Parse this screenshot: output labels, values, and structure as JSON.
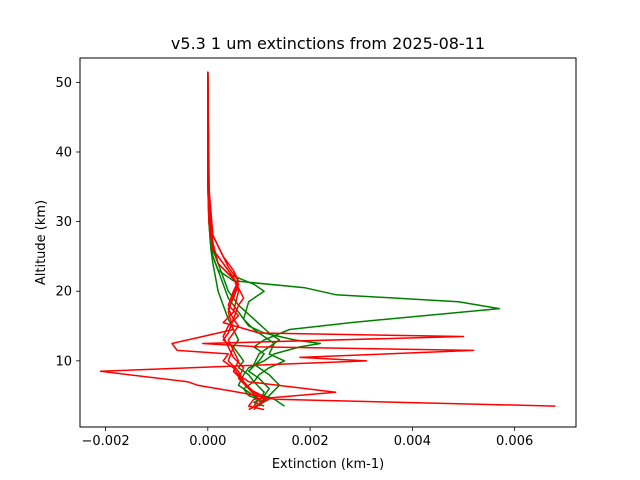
{
  "chart_data": {
    "type": "line",
    "title": "v5.3 1 um extinctions from 2025-08-11",
    "xlabel": "Extinction (km-1)",
    "ylabel": "Altitude (km)",
    "xlim": [
      -0.0025,
      0.0072
    ],
    "ylim": [
      0.5,
      53.5
    ],
    "x_ticks": [
      -0.002,
      0.0,
      0.002,
      0.004,
      0.006
    ],
    "x_tick_labels": [
      "−0.002",
      "0.000",
      "0.002",
      "0.004",
      "0.006"
    ],
    "y_ticks": [
      10,
      20,
      30,
      40,
      50
    ],
    "y_tick_labels": [
      "10",
      "20",
      "30",
      "40",
      "50"
    ],
    "grid": false,
    "colors": {
      "green": "#008000",
      "red": "#ff0000"
    },
    "series": [
      {
        "color": "green",
        "x": [
          0.0,
          0.0,
          0.0,
          2e-05,
          4e-05,
          6e-05,
          0.0001,
          0.00015,
          0.0002,
          0.0003,
          0.0004,
          0.0005,
          0.0006,
          0.0005,
          0.0006,
          0.0007,
          0.0006,
          0.0008,
          0.0009,
          0.0007,
          0.0008,
          0.001,
          0.0009,
          0.0011
        ],
        "y": [
          51.5,
          40,
          35,
          30,
          28,
          26,
          24,
          22,
          20,
          18,
          16,
          14.5,
          13,
          12,
          11,
          10,
          9,
          8,
          7,
          6,
          5,
          4.5,
          4,
          3.5
        ]
      },
      {
        "color": "green",
        "x": [
          0.0,
          0.0,
          2e-05,
          5e-05,
          0.0001,
          0.0002,
          0.0005,
          0.0019,
          0.0025,
          0.0049,
          0.0057,
          0.0028,
          0.0016,
          0.0011,
          0.0009,
          0.0011,
          0.001,
          0.0008,
          0.001,
          0.0012,
          0.0011,
          0.0013,
          0.0015
        ],
        "y": [
          51.5,
          36,
          30,
          27,
          25,
          23,
          21.5,
          20.5,
          19.5,
          18.5,
          17.5,
          15.5,
          14.5,
          13,
          12,
          11,
          10,
          8.5,
          7.5,
          6,
          5,
          4.5,
          3.5
        ]
      },
      {
        "color": "green",
        "x": [
          0.0,
          1e-05,
          4e-05,
          0.0001,
          0.0002,
          0.0004,
          0.0009,
          0.0011,
          0.0008,
          0.0007,
          0.0009,
          0.0011,
          0.0013,
          0.0012,
          0.0015,
          0.0012,
          0.001,
          0.0009,
          0.0011,
          0.001
        ],
        "y": [
          51.5,
          33,
          29,
          26,
          24,
          22.5,
          21,
          20,
          18.5,
          16,
          14.5,
          13.5,
          12.5,
          11,
          10,
          9,
          8,
          7,
          5.5,
          4
        ]
      },
      {
        "color": "green",
        "x": [
          0.0,
          2e-05,
          5e-05,
          0.0001,
          0.0002,
          0.0003,
          0.0004,
          0.0006,
          0.0008,
          0.0011,
          0.0017,
          0.0022,
          0.0018,
          0.0013,
          0.0011,
          0.0008,
          0.0007,
          0.0006,
          0.0009,
          0.0011
        ],
        "y": [
          51.5,
          32,
          28,
          25,
          23,
          21,
          19,
          17,
          15,
          14,
          13,
          12.5,
          12,
          11,
          10,
          9,
          8,
          6.5,
          5,
          4
        ]
      },
      {
        "color": "green",
        "x": [
          0.0,
          2e-05,
          5e-05,
          0.0001,
          0.0002,
          0.0003,
          0.0004,
          0.0006,
          0.0009,
          0.0012,
          0.0014,
          0.0012,
          0.001,
          0.0009,
          0.0012,
          0.0014,
          0.0012,
          0.001
        ],
        "y": [
          51.5,
          34,
          29,
          26,
          24,
          22,
          20,
          18,
          16,
          14,
          13,
          12,
          11,
          9.5,
          8,
          6.5,
          5,
          3.5
        ]
      },
      {
        "color": "red",
        "x": [
          0.0,
          0.0,
          2e-05,
          0.0001,
          0.0003,
          0.0005,
          0.0006,
          0.0005,
          0.0003,
          0.001,
          0.005,
          -0.0001,
          0.001,
          0.0052,
          0.0018,
          0.0031,
          -0.0021,
          -0.0004,
          -0.0002,
          0.0006,
          0.0013,
          0.0068
        ],
        "y": [
          51.5,
          36,
          30,
          26,
          24,
          22,
          20,
          17,
          15.5,
          14,
          13.5,
          12.5,
          12,
          11.5,
          10.5,
          10,
          8.5,
          7,
          6.5,
          5.5,
          4.5,
          3.5
        ]
      },
      {
        "color": "red",
        "x": [
          0.0,
          1e-05,
          0.0001,
          0.0003,
          0.0005,
          0.0006,
          0.0005,
          0.0004,
          0.0005,
          -0.0007,
          -0.0006,
          0.0004,
          0.0003,
          0.0005,
          0.0006,
          0.0008,
          0.0025,
          0.0009,
          0.0008,
          0.0011
        ],
        "y": [
          51.5,
          34,
          28,
          25,
          23,
          21.5,
          19.5,
          17,
          14.5,
          12.5,
          11.5,
          11,
          10,
          9,
          8,
          7,
          5.5,
          4.5,
          3.5,
          3
        ]
      },
      {
        "color": "red",
        "x": [
          0.0,
          2e-05,
          0.0001,
          0.0002,
          0.0004,
          0.0006,
          0.0005,
          0.0004,
          0.0005,
          0.0004,
          0.0003,
          0.0005,
          0.0004,
          0.0006,
          0.0007,
          0.0009,
          0.0011,
          0.0009
        ],
        "y": [
          51.5,
          33,
          27,
          24,
          22.5,
          21,
          19,
          17.5,
          16,
          14,
          13,
          12,
          10,
          8.5,
          7,
          5.5,
          4.5,
          3
        ]
      },
      {
        "color": "red",
        "x": [
          0.0,
          3e-05,
          0.0001,
          0.0003,
          0.0005,
          0.0006,
          0.0007,
          0.0006,
          0.0005,
          0.0006,
          0.0004,
          0.0005,
          0.0006,
          0.0005,
          0.0007,
          0.0008,
          0.001,
          0.0009
        ],
        "y": [
          51.5,
          32,
          26,
          24,
          22,
          20.5,
          19,
          18,
          16,
          15,
          13,
          11.5,
          10,
          8.5,
          7,
          6,
          4.5,
          3.5
        ]
      },
      {
        "color": "red",
        "x": [
          0.0,
          2e-05,
          0.0001,
          0.0004,
          0.0006,
          0.0005,
          0.0004,
          0.0006,
          0.0004,
          0.0003,
          0.0004,
          0.0005,
          0.0007,
          0.0006,
          0.0008,
          0.0012,
          0.0008
        ],
        "y": [
          51.5,
          35,
          28,
          23.5,
          21.5,
          20,
          18,
          16.5,
          15,
          13.5,
          12,
          10.5,
          9,
          7.5,
          6,
          4.5,
          3
        ]
      }
    ]
  }
}
